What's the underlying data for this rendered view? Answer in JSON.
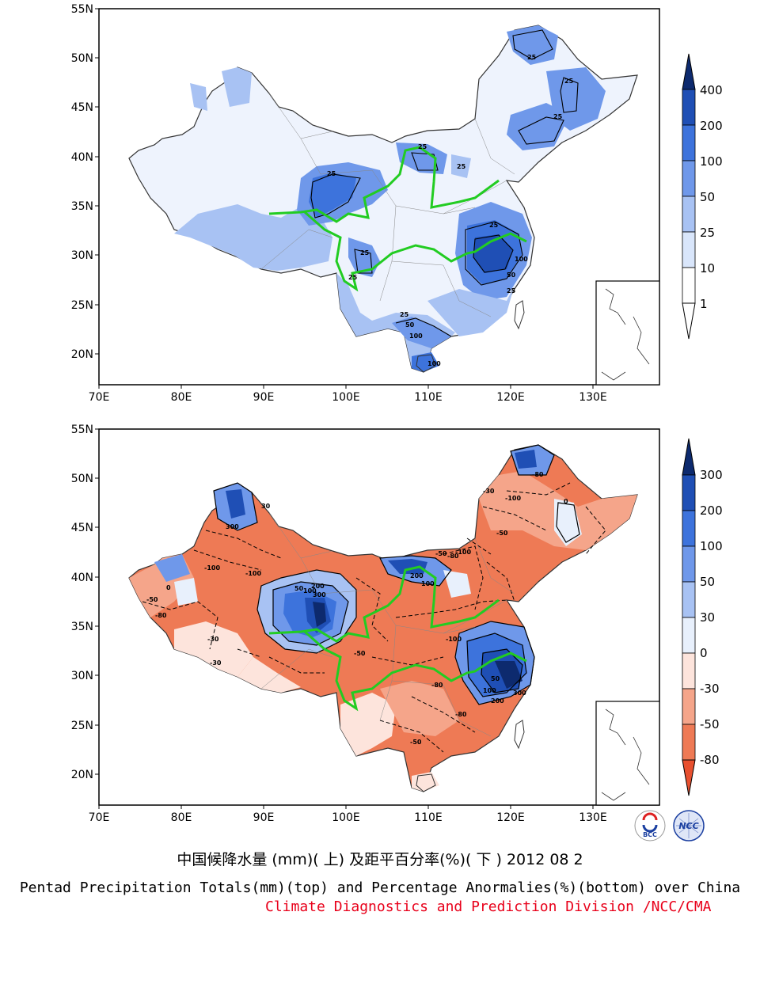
{
  "top_map": {
    "lat_labels": [
      "55N",
      "50N",
      "45N",
      "40N",
      "35N",
      "30N",
      "25N",
      "20N"
    ],
    "lon_labels": [
      "70E",
      "80E",
      "90E",
      "100E",
      "110E",
      "120E",
      "130E"
    ],
    "contour_labels": [
      "25",
      "25",
      "25",
      "25",
      "25",
      "25",
      "25",
      "25",
      "25",
      "25",
      "50",
      "100",
      "100",
      "25",
      "50",
      "100"
    ],
    "colorbar": {
      "labels": [
        "400",
        "200",
        "100",
        "50",
        "25",
        "10",
        "1"
      ],
      "colors": [
        "#0d2a6e",
        "#1f4fb5",
        "#3d73dc",
        "#6f98ea",
        "#a8c2f3",
        "#d9e6fb",
        "#ffffff"
      ]
    }
  },
  "bottom_map": {
    "lat_labels": [
      "55N",
      "50N",
      "45N",
      "40N",
      "35N",
      "30N",
      "25N",
      "20N"
    ],
    "lon_labels": [
      "70E",
      "80E",
      "90E",
      "100E",
      "110E",
      "120E",
      "130E"
    ],
    "contour_labels": [
      "-100",
      "-100",
      "-80",
      "-50",
      "-30",
      "0",
      "50",
      "100",
      "200",
      "300",
      "-80",
      "-50",
      "-100",
      "30",
      "300",
      "200",
      "100",
      "-100",
      "-80",
      "-50",
      "-30",
      "50",
      "100",
      "300",
      "200",
      "-100",
      "-80",
      "-50",
      "-30",
      "0",
      "-80",
      "-50"
    ],
    "colorbar": {
      "labels": [
        "300",
        "200",
        "100",
        "50",
        "30",
        "0",
        "-30",
        "-50",
        "-80"
      ],
      "colors": [
        "#0d2a6e",
        "#1f4fb5",
        "#3d73dc",
        "#6f98ea",
        "#a8c2f3",
        "#e8f0fc",
        "#fde4dc",
        "#f5a58a",
        "#ee7a55",
        "#e8502f"
      ]
    }
  },
  "logos": {
    "left_text": "BCC",
    "right_text": "NCC"
  },
  "captions": {
    "chinese": "中国候降水量 (mm)( 上) 及距平百分率(%)( 下 ) 2012 08 2",
    "english": "Pentad Precipitation Totals(mm)(top) and Percentage Anormalies(%)(bottom) over China",
    "division": "Climate Diagnostics and Prediction Division /NCC/CMA"
  }
}
